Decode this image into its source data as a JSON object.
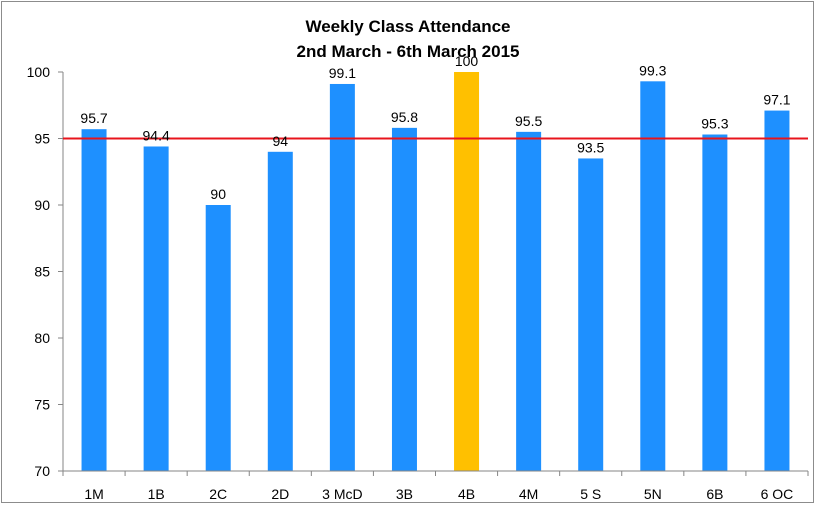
{
  "chart_data": {
    "type": "bar",
    "title": "Weekly Class Attendance",
    "subtitle": "2nd March - 6th March 2015",
    "categories": [
      "1M",
      "1B",
      "2C",
      "2D",
      "3 McD",
      "3B",
      "4B",
      "4M",
      "5 S",
      "5N",
      "6B",
      "6 OC"
    ],
    "values": [
      95.7,
      94.4,
      90,
      94,
      99.1,
      95.8,
      100,
      95.5,
      93.5,
      99.3,
      95.3,
      97.1
    ],
    "data_labels": [
      "95.7",
      "94.4",
      "90",
      "94",
      "99.1",
      "95.8",
      "100",
      "95.5",
      "93.5",
      "99.3",
      "95.3",
      "97.1"
    ],
    "highlight_category": "4B",
    "ylim": [
      70,
      100
    ],
    "yticks": [
      70,
      75,
      80,
      85,
      90,
      95,
      100
    ],
    "target_line": 95,
    "grid": false,
    "legend": "none",
    "xlabel": "",
    "ylabel": ""
  },
  "colors": {
    "bar": "#1e90ff",
    "highlight_bar": "#ffc000",
    "target_line": "#e8141c",
    "axis": "#868686"
  }
}
